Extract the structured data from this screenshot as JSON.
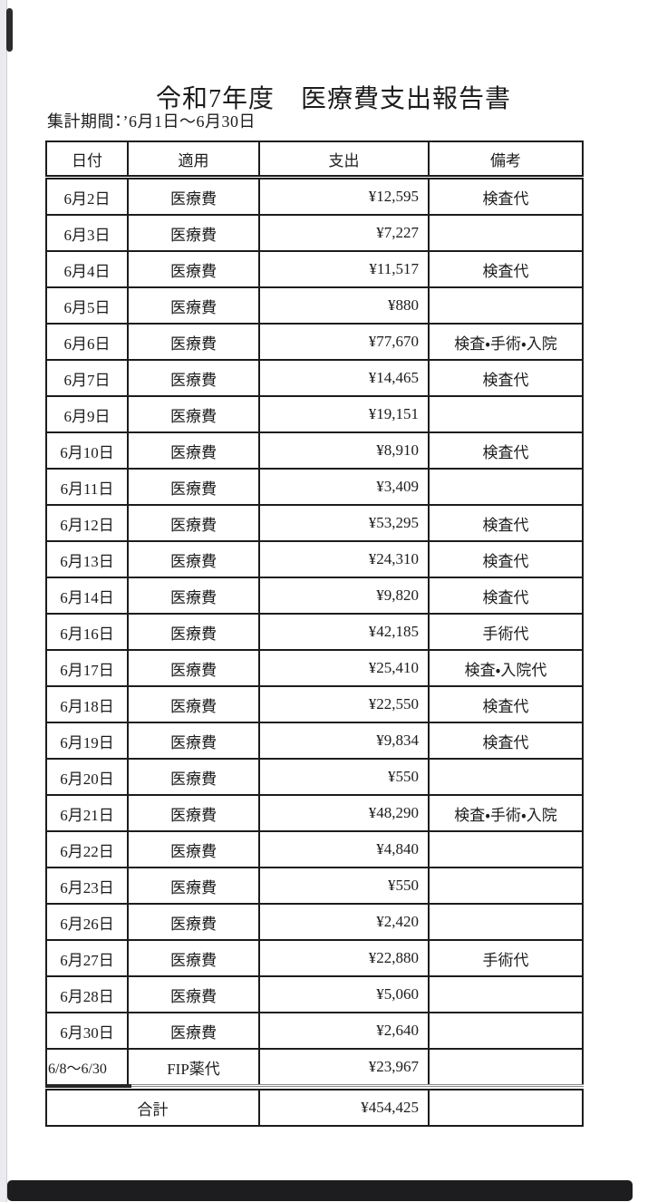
{
  "page": {
    "title": "令和7年度　医療費支出報告書",
    "period_label": "集計期間：’6月1日～6月30日"
  },
  "table": {
    "headers": [
      "日付",
      "適用",
      "支出",
      "備考"
    ],
    "rows": [
      [
        "6月2日",
        "医療費",
        "¥12,595",
        "検査代"
      ],
      [
        "6月3日",
        "医療費",
        "¥7,227",
        ""
      ],
      [
        "6月4日",
        "医療費",
        "¥11,517",
        "検査代"
      ],
      [
        "6月5日",
        "医療費",
        "¥880",
        ""
      ],
      [
        "6月6日",
        "医療費",
        "¥77,670",
        "検査・手術・入院"
      ],
      [
        "6月7日",
        "医療費",
        "¥14,465",
        "検査代"
      ],
      [
        "6月9日",
        "医療費",
        "¥19,151",
        ""
      ],
      [
        "6月10日",
        "医療費",
        "¥8,910",
        "検査代"
      ],
      [
        "6月11日",
        "医療費",
        "¥3,409",
        ""
      ],
      [
        "6月12日",
        "医療費",
        "¥53,295",
        "検査代"
      ],
      [
        "6月13日",
        "医療費",
        "¥24,310",
        "検査代"
      ],
      [
        "6月14日",
        "医療費",
        "¥9,820",
        "検査代"
      ],
      [
        "6月16日",
        "医療費",
        "¥42,185",
        "手術代"
      ],
      [
        "6月17日",
        "医療費",
        "¥25,410",
        "検査・入院代"
      ],
      [
        "6月18日",
        "医療費",
        "¥22,550",
        "検査代"
      ],
      [
        "6月19日",
        "医療費",
        "¥9,834",
        "検査代"
      ],
      [
        "6月20日",
        "医療費",
        "¥550",
        ""
      ],
      [
        "6月21日",
        "医療費",
        "¥48,290",
        "検査・手術・入院"
      ],
      [
        "6月22日",
        "医療費",
        "¥4,840",
        ""
      ],
      [
        "6月23日",
        "医療費",
        "¥550",
        ""
      ],
      [
        "6月26日",
        "医療費",
        "¥2,420",
        ""
      ],
      [
        "6月27日",
        "医療費",
        "¥22,880",
        "手術代"
      ],
      [
        "6月28日",
        "医療費",
        "¥5,060",
        ""
      ],
      [
        "6月30日",
        "医療費",
        "¥2,640",
        ""
      ],
      [
        "6/8～6/30",
        "FIP薬代",
        "¥23,967",
        ""
      ]
    ],
    "total": {
      "label": "合計",
      "amount": "¥454,425",
      "note": ""
    }
  },
  "colors": {
    "text": "#1c1c1c",
    "table_border": "#1c1c1c",
    "page_edge_strip": "#eaeaef",
    "scroll_indicator": "#222224",
    "background": "#ffffff"
  }
}
